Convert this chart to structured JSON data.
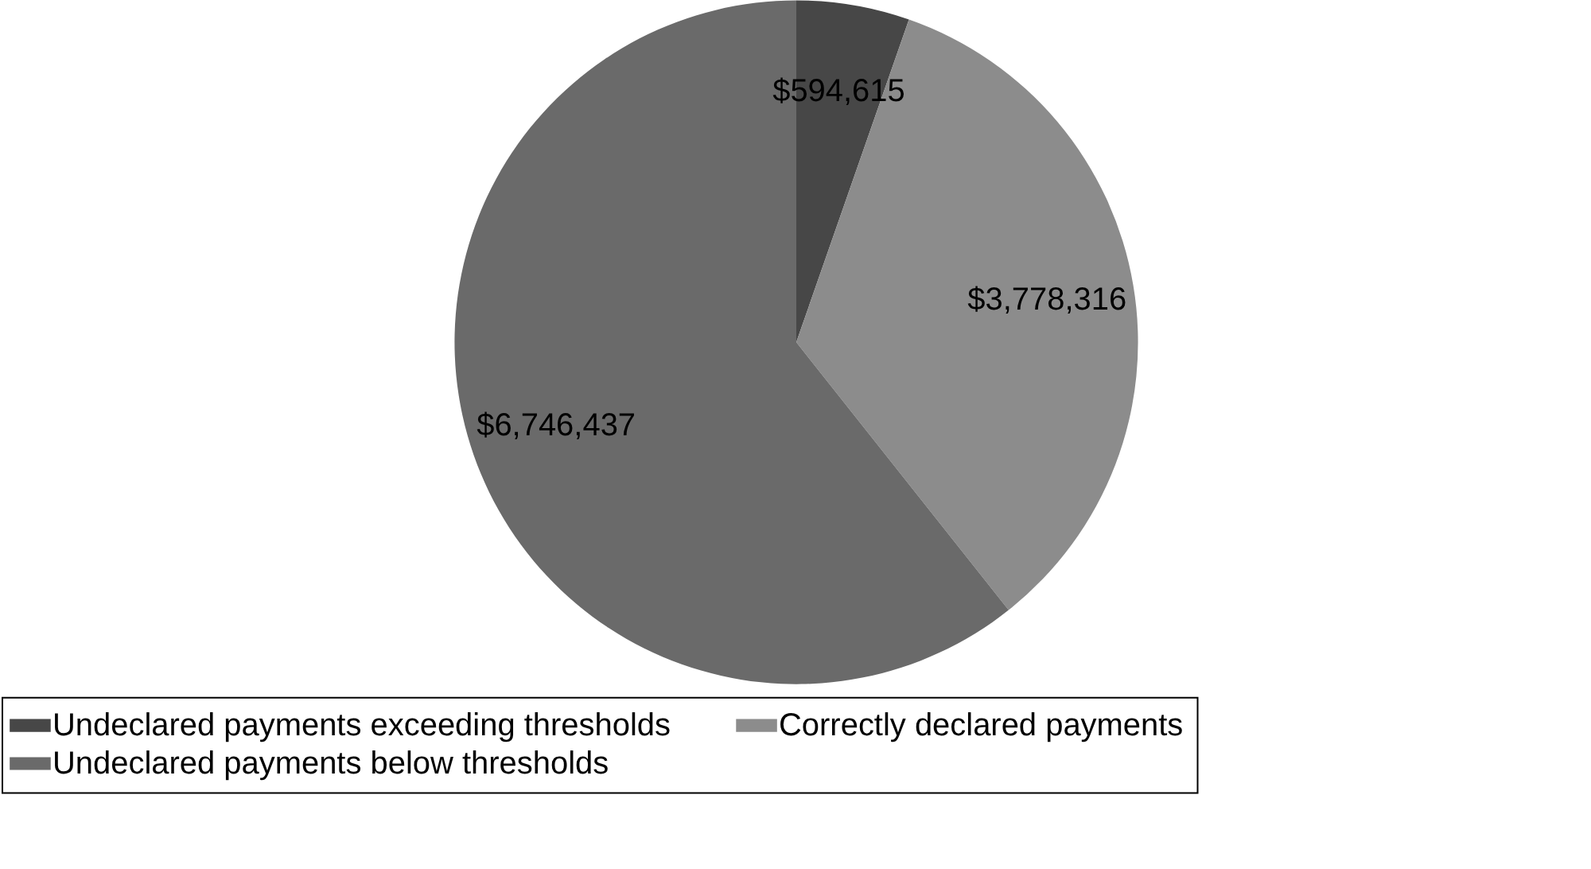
{
  "chart_data": {
    "type": "pie",
    "categories": [
      "Undeclared payments exceeding thresholds",
      "Correctly declared payments",
      "Undeclared payments below thresholds"
    ],
    "values": [
      594615,
      3778316,
      6746437
    ],
    "value_labels": [
      "$594,615",
      "$3,778,316",
      "$6,746,437"
    ],
    "colors": [
      "#474747",
      "#8c8c8c",
      "#6a6a6a"
    ],
    "legend": "bottom"
  }
}
